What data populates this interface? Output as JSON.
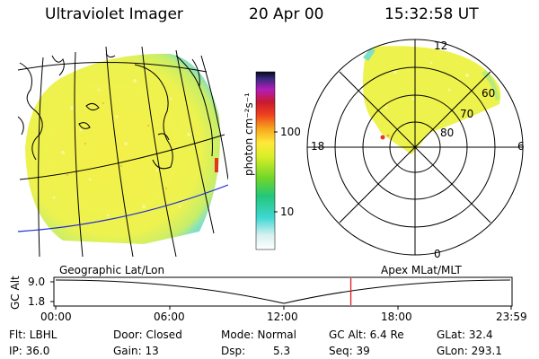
{
  "header": {
    "instrument": "Ultraviolet Imager",
    "date": "20 Apr 00",
    "time": "15:32:58 UT"
  },
  "colorbar": {
    "unit": "photon cm⁻²s⁻¹",
    "ticks": [
      "100",
      "10"
    ]
  },
  "polar": {
    "mlt_labels": {
      "top": "12",
      "left": "18",
      "right": "6",
      "bottom": "0"
    },
    "lat_labels": [
      "60",
      "70",
      "80"
    ]
  },
  "timeline": {
    "left_title": "Geographic Lat/Lon",
    "right_title": "Apex MLat/MLT",
    "axis_label": "GC Alt",
    "y_high": "9.0",
    "y_low": "1.8",
    "x_ticks": [
      "00:00",
      "06:00",
      "12:00",
      "18:00",
      "23:59"
    ],
    "marker_fraction": 0.648
  },
  "status": {
    "flt": "Flt: LBHL",
    "door": "Door: Closed",
    "mode": "Mode: Normal",
    "gc_alt": "GC Alt: 6.4 Re",
    "glat": "GLat: 32.4",
    "ip": "IP: 36.0",
    "gain": "Gain: 13",
    "dsp_label": "Dsp:",
    "dsp_value": "5.3",
    "seq": "Seq: 39",
    "glon": "GLon: 293.1"
  },
  "colors": {
    "disk_fill": "#f2f04e",
    "grid_line": "#000000",
    "equator_line": "#1a2bd6",
    "marker_line": "#e0191d",
    "disk_edge": "#8fe3c8"
  }
}
